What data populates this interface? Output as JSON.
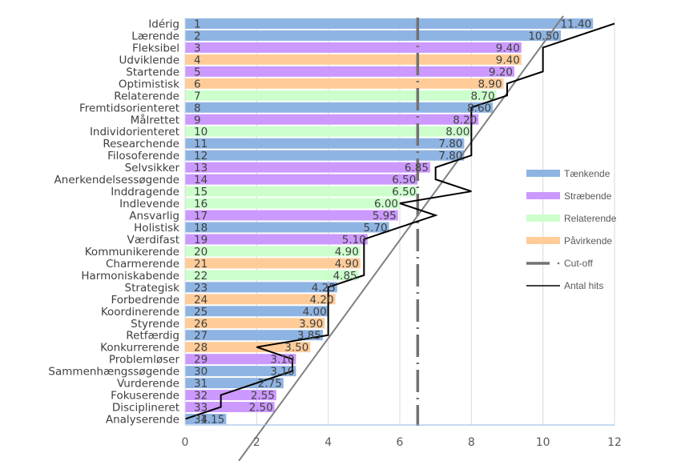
{
  "chart_data": {
    "type": "bar",
    "orientation": "horizontal",
    "title": "",
    "xlabel": "",
    "ylabel": "",
    "xlim": [
      0,
      12
    ],
    "x_ticks": [
      "0",
      "2",
      "4",
      "6",
      "8",
      "10",
      "12"
    ],
    "grid": true,
    "legend_position": "right",
    "categories": [
      "Idérig",
      "Lærende",
      "Fleksibel",
      "Udviklende",
      "Startende",
      "Optimistisk",
      "Relaterende",
      "Fremtidsorienteret",
      "Målrettet",
      "Individorienteret",
      "Researchende",
      "Filosoferende",
      "Selvsikker",
      "Anerkendelsessøgende",
      "Inddragende",
      "Indlevende",
      "Ansvarlig",
      "Holistisk",
      "Værdifast",
      "Kommunikerende",
      "Charmerende",
      "Harmoniskabende",
      "Strategisk",
      "Forbedrende",
      "Koordinerende",
      "Styrende",
      "Retfærdig",
      "Konkurrerende",
      "Problemløser",
      "Sammenhængssøgende",
      "Vurderende",
      "Fokuserende",
      "Disciplineret",
      "Analyserende"
    ],
    "ranks": [
      "1",
      "2",
      "3",
      "4",
      "5",
      "6",
      "7",
      "8",
      "9",
      "10",
      "11",
      "12",
      "13",
      "14",
      "15",
      "16",
      "17",
      "18",
      "19",
      "20",
      "21",
      "22",
      "23",
      "24",
      "25",
      "26",
      "27",
      "28",
      "29",
      "30",
      "31",
      "32",
      "33",
      "34"
    ],
    "values": [
      11.4,
      10.5,
      9.4,
      9.4,
      9.2,
      8.9,
      8.7,
      8.6,
      8.2,
      8.0,
      7.8,
      7.8,
      6.85,
      6.5,
      6.5,
      6.0,
      5.95,
      5.7,
      5.1,
      4.9,
      4.9,
      4.85,
      4.25,
      4.2,
      4.0,
      3.9,
      3.85,
      3.5,
      3.1,
      3.1,
      2.75,
      2.55,
      2.5,
      1.15
    ],
    "value_labels": [
      "11.40",
      "10.50",
      "9.40",
      "9.40",
      "9.20",
      "8.90",
      "8.70",
      "8.60",
      "8.20",
      "8.00",
      "7.80",
      "7.80",
      "6.85",
      "6.50",
      "6.50",
      "6.00",
      "5.95",
      "5.70",
      "5.10",
      "4.90",
      "4.90",
      "4.85",
      "4.25",
      "4.20",
      "4.00",
      "3.90",
      "3.85",
      "3.50",
      "3.10",
      "3.10",
      "2.75",
      "2.55",
      "2.50",
      "1.15"
    ],
    "groups": [
      "T",
      "T",
      "S",
      "P",
      "S",
      "P",
      "R",
      "T",
      "S",
      "R",
      "T",
      "T",
      "S",
      "S",
      "R",
      "R",
      "S",
      "T",
      "S",
      "R",
      "P",
      "R",
      "T",
      "P",
      "T",
      "P",
      "T",
      "P",
      "S",
      "T",
      "T",
      "S",
      "S",
      "T"
    ],
    "series": [
      {
        "key": "T",
        "name": "Tænkende",
        "color": "#8eb4e3",
        "kind": "bar"
      },
      {
        "key": "S",
        "name": "Stræbende",
        "color": "#cc99ff",
        "kind": "bar"
      },
      {
        "key": "R",
        "name": "Relaterende",
        "color": "#ccffcc",
        "kind": "bar"
      },
      {
        "key": "P",
        "name": "Påvirkende",
        "color": "#ffcc99",
        "kind": "bar"
      },
      {
        "key": "cutoff",
        "name": "Cut-off",
        "color": "#767171",
        "kind": "line",
        "value": 6.5
      },
      {
        "key": "hits",
        "name": "Antal hits",
        "color": "#000000",
        "kind": "line",
        "values": [
          12,
          11,
          10,
          10,
          10,
          9,
          9,
          8,
          8,
          8,
          8,
          8,
          7,
          7,
          8,
          6,
          7,
          6,
          5,
          5,
          5,
          5,
          4,
          4,
          4,
          4,
          4,
          2,
          3,
          3,
          2,
          1,
          1,
          0
        ]
      }
    ],
    "trendline": {
      "color": "#808080",
      "from": [
        1.5,
        0
      ],
      "to": [
        10.6,
        34
      ]
    }
  }
}
